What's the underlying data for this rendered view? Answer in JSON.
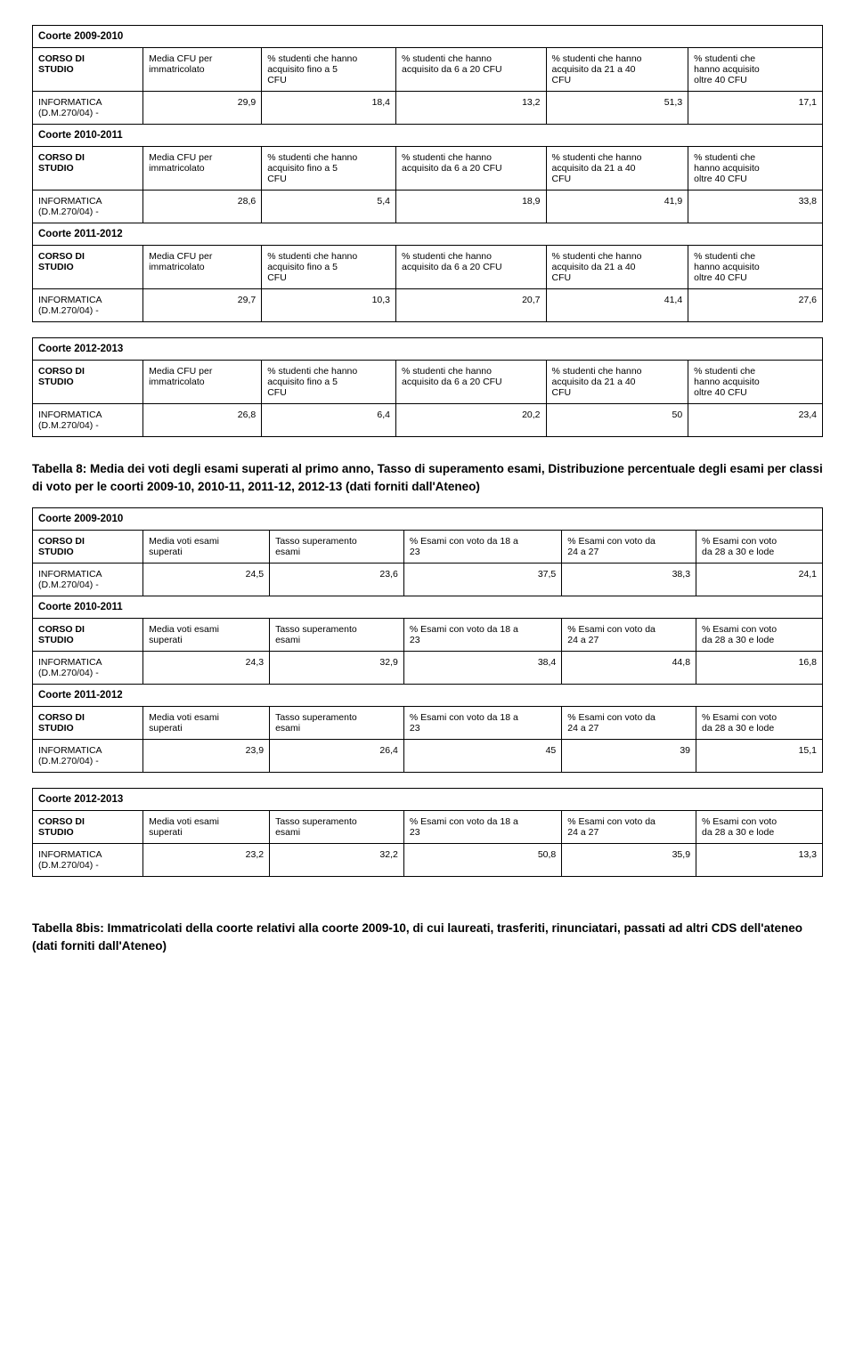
{
  "table7": {
    "col_headers": {
      "c1a": "CORSO DI",
      "c1b": "STUDIO",
      "c2a": "Media CFU per",
      "c2b": "immatricolato",
      "c3a": "% studenti che hanno",
      "c3b": "acquisito fino a 5",
      "c3c": "CFU",
      "c4a": "% studenti che hanno",
      "c4b": "acquisito da 6 a 20 CFU",
      "c5a": "% studenti che hanno",
      "c5b": "acquisito da 21 a 40",
      "c5c": "CFU",
      "c6a": "% studenti che",
      "c6b": "hanno acquisito",
      "c6c": "oltre 40 CFU"
    },
    "row_label_a": "INFORMATICA",
    "row_label_b": "(D.M.270/04) -",
    "coorti": [
      {
        "title": "Coorte 2009-2010",
        "vals": [
          "29,9",
          "18,4",
          "13,2",
          "51,3",
          "17,1"
        ]
      },
      {
        "title": "Coorte 2010-2011",
        "vals": [
          "28,6",
          "5,4",
          "18,9",
          "41,9",
          "33,8"
        ]
      },
      {
        "title": "Coorte 2011-2012",
        "vals": [
          "29,7",
          "10,3",
          "20,7",
          "41,4",
          "27,6"
        ]
      },
      {
        "title": "Coorte 2012-2013",
        "vals": [
          "26,8",
          "6,4",
          "20,2",
          "50",
          "23,4"
        ]
      }
    ]
  },
  "caption8": "Tabella 8: Media dei voti degli esami superati al primo anno, Tasso di superamento esami, Distribuzione percentuale degli esami per classi di voto per le coorti 2009-10, 2010-11, 2011-12, 2012-13  (dati forniti dall'Ateneo)",
  "table8": {
    "col_headers": {
      "c1a": "CORSO DI",
      "c1b": "STUDIO",
      "c2a": "Media voti esami",
      "c2b": "superati",
      "c3a": "Tasso superamento",
      "c3b": "esami",
      "c4a": "% Esami con voto da 18 a",
      "c4b": "23",
      "c5a": "% Esami con voto da",
      "c5b": "24 a 27",
      "c6a": "% Esami con voto",
      "c6b": "da 28 a 30 e lode"
    },
    "row_label_a": "INFORMATICA",
    "row_label_b": "(D.M.270/04) -",
    "coorti": [
      {
        "title": "Coorte 2009-2010",
        "vals": [
          "24,5",
          "23,6",
          "37,5",
          "38,3",
          "24,1"
        ]
      },
      {
        "title": "Coorte 2010-2011",
        "vals": [
          "24,3",
          "32,9",
          "38,4",
          "44,8",
          "16,8"
        ]
      },
      {
        "title": "Coorte 2011-2012",
        "vals": [
          "23,9",
          "26,4",
          "45",
          "39",
          "15,1"
        ]
      },
      {
        "title": "Coorte 2012-2013",
        "vals": [
          "23,2",
          "32,2",
          "50,8",
          "35,9",
          "13,3"
        ]
      }
    ]
  },
  "caption8bis": "Tabella 8bis: Immatricolati della coorte relativi alla coorte 2009-10, di cui laureati, trasferiti, rinunciatari, passati ad altri CDS dell'ateneo (dati forniti dall'Ateneo)"
}
